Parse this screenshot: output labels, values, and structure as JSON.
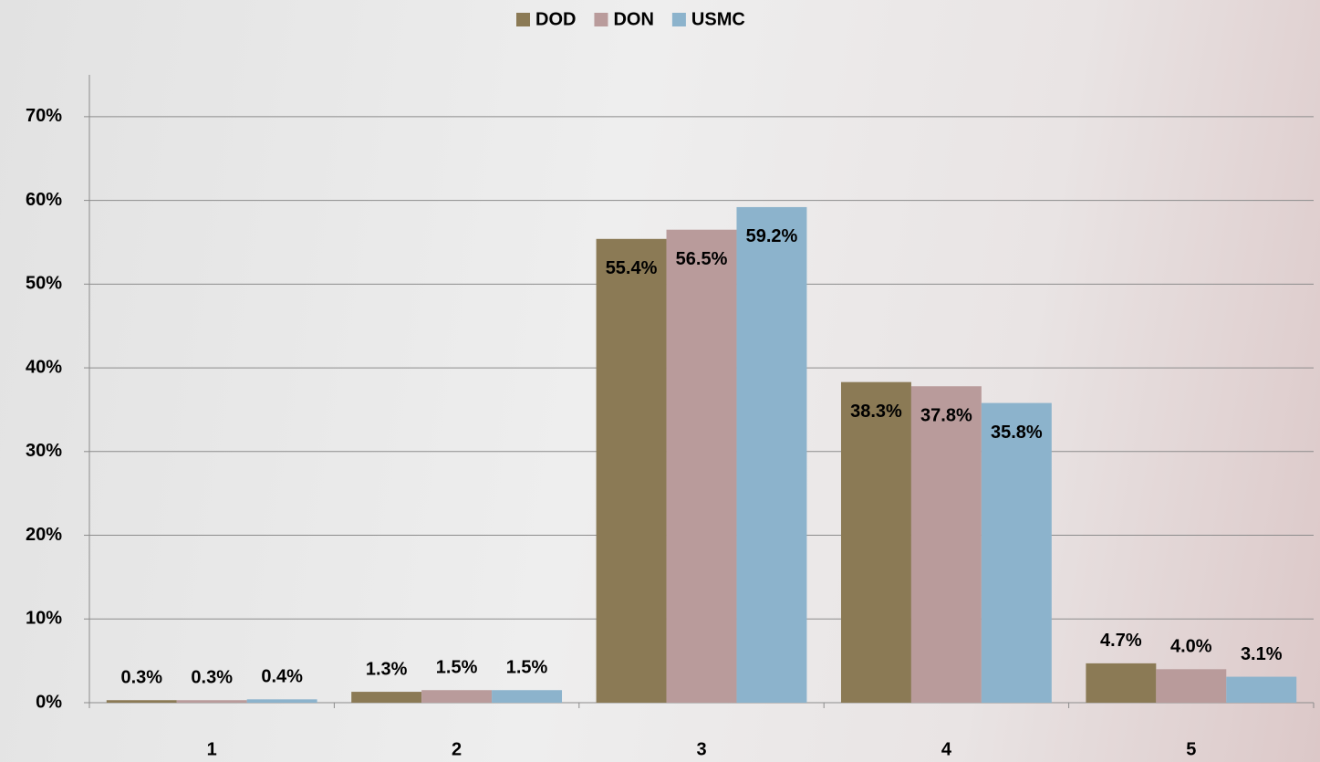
{
  "chart_data": {
    "type": "bar",
    "categories": [
      "1",
      "2",
      "3",
      "4",
      "5"
    ],
    "series": [
      {
        "name": "DOD",
        "color": "#8b7a55",
        "values": [
          0.3,
          1.3,
          55.4,
          38.3,
          4.7
        ],
        "value_labels": [
          "0.3%",
          "1.3%",
          "55.4%",
          "38.3%",
          "4.7%"
        ]
      },
      {
        "name": "DON",
        "color": "#b99b9b",
        "values": [
          0.3,
          1.5,
          56.5,
          37.8,
          4.0
        ],
        "value_labels": [
          "0.3%",
          "1.5%",
          "56.5%",
          "37.8%",
          "4.0%"
        ]
      },
      {
        "name": "USMC",
        "color": "#8cb3cc",
        "values": [
          0.4,
          1.5,
          59.2,
          35.8,
          3.1
        ],
        "value_labels": [
          "0.4%",
          "1.5%",
          "59.2%",
          "35.8%",
          "3.1%"
        ]
      }
    ],
    "ylim": [
      0,
      75
    ],
    "yticks": [
      {
        "value": 0,
        "label": "0%"
      },
      {
        "value": 10,
        "label": "10%"
      },
      {
        "value": 20,
        "label": "20%"
      },
      {
        "value": 30,
        "label": "30%"
      },
      {
        "value": 40,
        "label": "40%"
      },
      {
        "value": 50,
        "label": "50%"
      },
      {
        "value": 60,
        "label": "60%"
      },
      {
        "value": 70,
        "label": "70%"
      }
    ],
    "grid": true,
    "legend": "top"
  }
}
